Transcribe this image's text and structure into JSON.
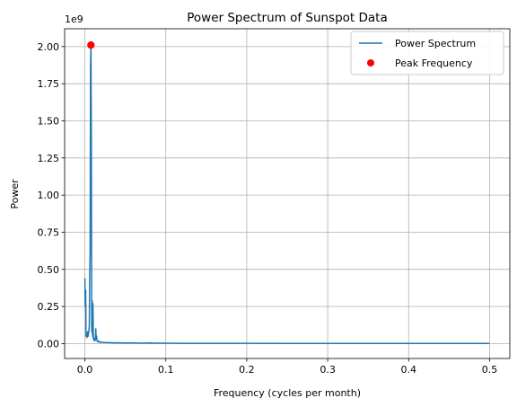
{
  "chart_data": {
    "type": "line",
    "title": "Power Spectrum of Sunspot Data",
    "xlabel": "Frequency (cycles per month)",
    "ylabel": "Power",
    "y_scale_label": "1e9",
    "y_scale": 1000000000,
    "xlim": [
      -0.025,
      0.525
    ],
    "ylim": [
      -0.1,
      2.12
    ],
    "grid": true,
    "legend_position": "upper-right",
    "x_ticks": [
      0.0,
      0.1,
      0.2,
      0.3,
      0.4,
      0.5
    ],
    "x_tick_labels": [
      "0.0",
      "0.1",
      "0.2",
      "0.3",
      "0.4",
      "0.5"
    ],
    "y_ticks": [
      0.0,
      0.25,
      0.5,
      0.75,
      1.0,
      1.25,
      1.5,
      1.75,
      2.0
    ],
    "y_tick_labels": [
      "0.00",
      "0.25",
      "0.50",
      "0.75",
      "1.00",
      "1.25",
      "1.50",
      "1.75",
      "2.00"
    ],
    "series": [
      {
        "name": "Power Spectrum",
        "kind": "line",
        "color": "#1f77b4",
        "x": [
          0.0,
          0.0005,
          0.001,
          0.0015,
          0.002,
          0.0025,
          0.003,
          0.0035,
          0.004,
          0.0045,
          0.005,
          0.0055,
          0.006,
          0.0065,
          0.007,
          0.0075,
          0.008,
          0.0085,
          0.009,
          0.0095,
          0.01,
          0.0105,
          0.011,
          0.0115,
          0.012,
          0.0125,
          0.013,
          0.0135,
          0.014,
          0.0145,
          0.015,
          0.016,
          0.017,
          0.018,
          0.019,
          0.02,
          0.022,
          0.024,
          0.026,
          0.028,
          0.03,
          0.035,
          0.04,
          0.05,
          0.06,
          0.07,
          0.08,
          0.09,
          0.1,
          0.12,
          0.15,
          0.2,
          0.25,
          0.3,
          0.35,
          0.4,
          0.45,
          0.5
        ],
        "y": [
          0.44,
          0.25,
          0.36,
          0.05,
          0.07,
          0.04,
          0.06,
          0.08,
          0.05,
          0.07,
          0.09,
          0.12,
          0.48,
          0.62,
          1.86,
          2.01,
          1.4,
          0.08,
          0.29,
          0.05,
          0.27,
          0.03,
          0.04,
          0.02,
          0.03,
          0.02,
          0.03,
          0.1,
          0.03,
          0.05,
          0.02,
          0.012,
          0.018,
          0.01,
          0.012,
          0.008,
          0.01,
          0.007,
          0.008,
          0.006,
          0.007,
          0.005,
          0.006,
          0.004,
          0.005,
          0.003,
          0.004,
          0.003,
          0.003,
          0.002,
          0.002,
          0.002,
          0.001,
          0.001,
          0.001,
          0.001,
          0.001,
          0.001
        ]
      },
      {
        "name": "Peak Frequency",
        "kind": "scatter",
        "color": "#ff0000",
        "x": [
          0.0075
        ],
        "y": [
          2.01
        ]
      }
    ]
  }
}
